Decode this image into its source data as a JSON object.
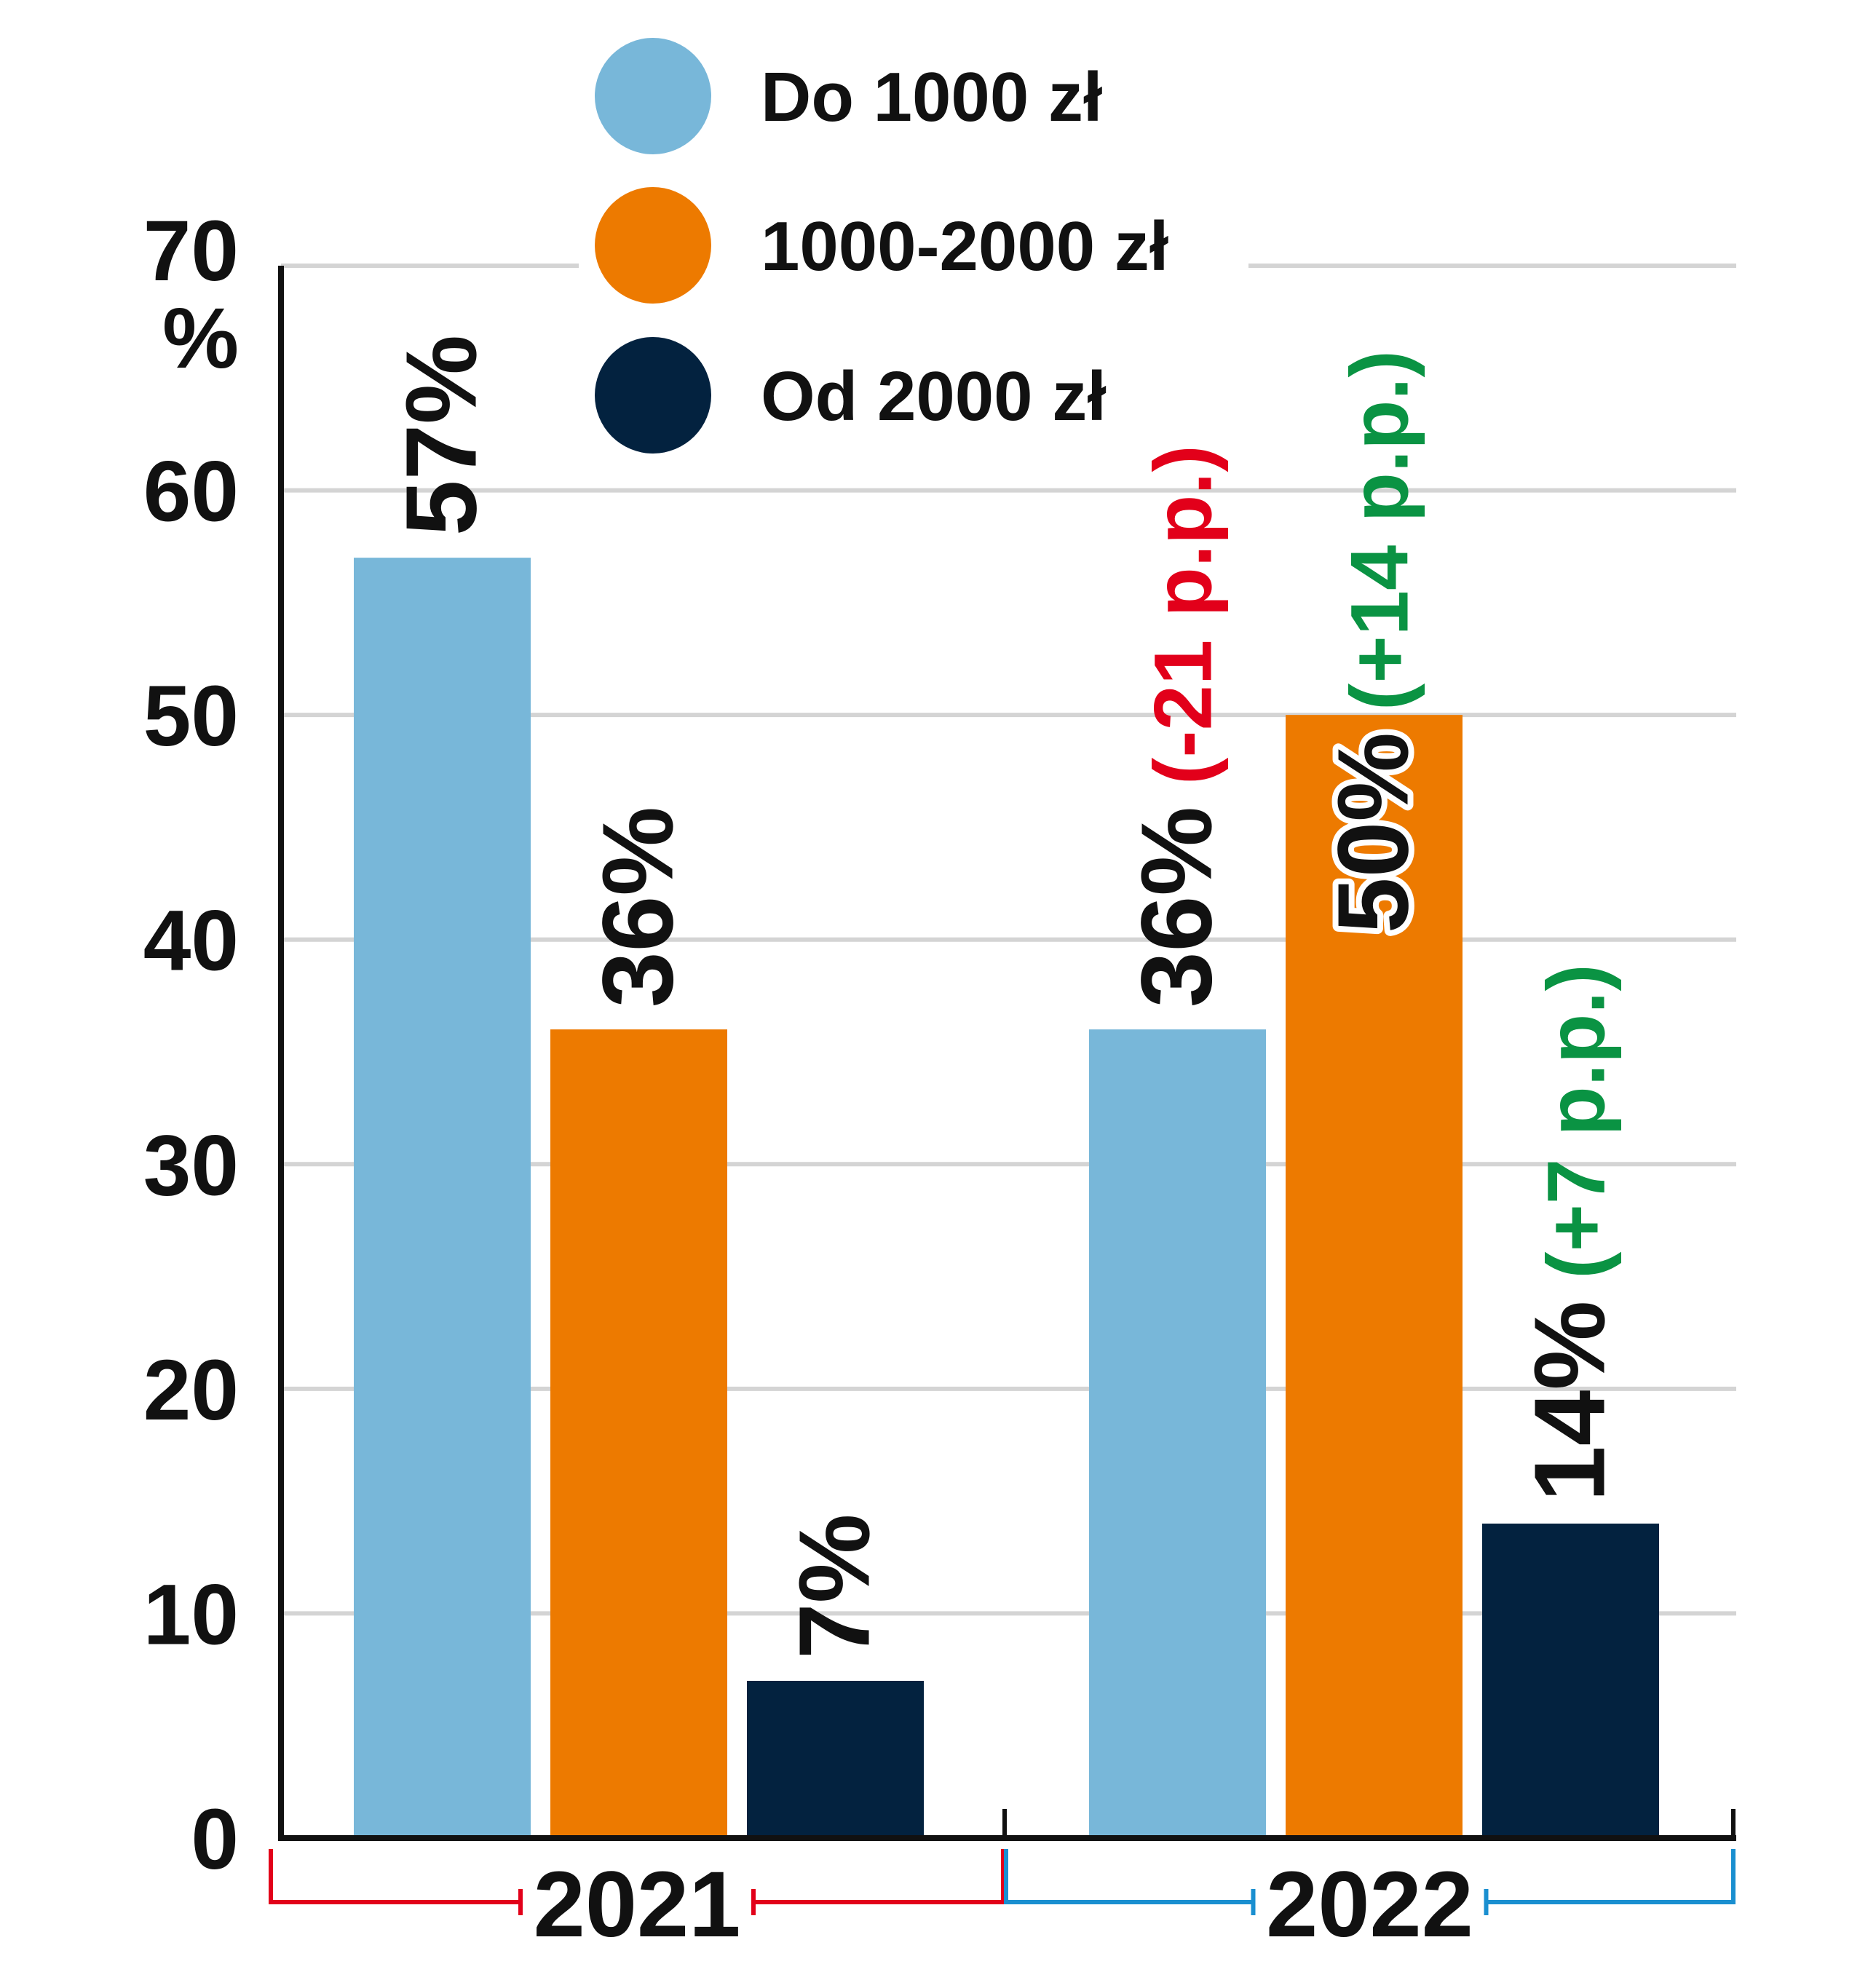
{
  "chart_data": {
    "type": "bar",
    "categories": [
      "2021",
      "2022"
    ],
    "series": [
      {
        "name": "Do 1000 zł",
        "color": "#78b7d9",
        "values": [
          57,
          36
        ],
        "labels": [
          "57%",
          "36%"
        ],
        "changes": [
          "",
          "(-21 p.p.)"
        ],
        "change_colors": [
          "",
          "#e2001a"
        ]
      },
      {
        "name": "1000-2000 zł",
        "color": "#ed7a00",
        "values": [
          36,
          50
        ],
        "labels": [
          "36%",
          "50%"
        ],
        "changes": [
          "",
          "(+14 p.p.)"
        ],
        "change_colors": [
          "",
          "#0a9343"
        ]
      },
      {
        "name": "Od 2000 zł",
        "color": "#03223f",
        "values": [
          7,
          14
        ],
        "labels": [
          "7%",
          "14%"
        ],
        "changes": [
          "",
          "(+7 p.p.)"
        ],
        "change_colors": [
          "",
          "#0a9343"
        ]
      }
    ],
    "ylim": [
      0,
      70
    ],
    "yticks": [
      0,
      10,
      20,
      30,
      40,
      50,
      60,
      70
    ],
    "y_unit": "%",
    "grid": true,
    "legend_position": "top",
    "year_bracket_colors": [
      "#e2001a",
      "#1a8fd0"
    ]
  }
}
